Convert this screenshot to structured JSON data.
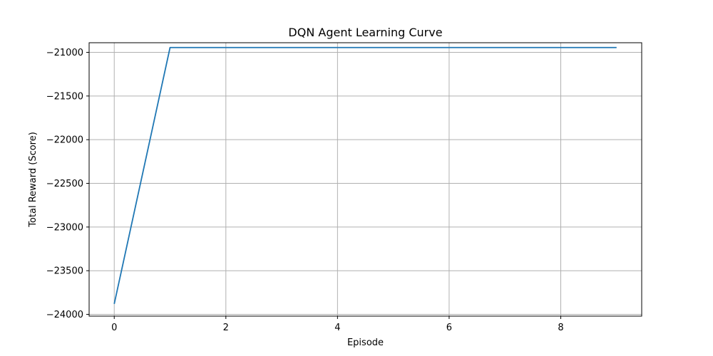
{
  "chart_data": {
    "type": "line",
    "title": "DQN Agent Learning Curve",
    "xlabel": "Episode",
    "ylabel": "Total Reward (Score)",
    "xlim": [
      -0.45,
      9.45
    ],
    "ylim": [
      -24020,
      -20890
    ],
    "x_ticks": [
      0,
      2,
      4,
      6,
      8
    ],
    "y_ticks": [
      -24000,
      -23500,
      -23000,
      -22500,
      -22000,
      -21500,
      -21000
    ],
    "x_tick_labels": [
      "0",
      "2",
      "4",
      "6",
      "8"
    ],
    "y_tick_labels": [
      "−24000",
      "−23500",
      "−23000",
      "−22500",
      "−22000",
      "−21500",
      "−21000"
    ],
    "grid": true,
    "legend": "none",
    "series": [
      {
        "color": "#1f77b4",
        "x": [
          0,
          1,
          2,
          3,
          4,
          5,
          6,
          7,
          8,
          9
        ],
        "y": [
          -23880,
          -20945,
          -20945,
          -20945,
          -20945,
          -20945,
          -20945,
          -20945,
          -20945,
          -20945
        ]
      }
    ]
  }
}
